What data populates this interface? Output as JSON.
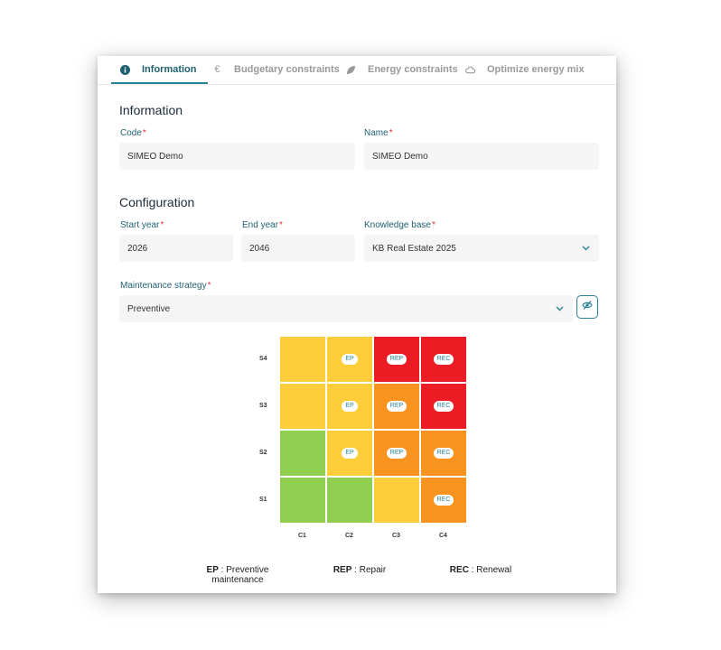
{
  "tabs": [
    {
      "label": "Information",
      "icon": "info-icon",
      "active": true
    },
    {
      "label": "Budgetary constraints",
      "icon": "euro-icon",
      "active": false
    },
    {
      "label": "Energy constraints",
      "icon": "leaf-icon",
      "active": false
    },
    {
      "label": "Optimize energy mix",
      "icon": "cloud-icon",
      "active": false
    }
  ],
  "information": {
    "title": "Information",
    "code_label": "Code",
    "code_value": "SIMEO Demo",
    "name_label": "Name",
    "name_value": "SIMEO Demo"
  },
  "configuration": {
    "title": "Configuration",
    "start_year_label": "Start year",
    "start_year_value": "2026",
    "end_year_label": "End year",
    "end_year_value": "2046",
    "knowledge_base_label": "Knowledge base",
    "knowledge_base_value": "KB Real Estate 2025",
    "maintenance_label": "Maintenance strategy",
    "maintenance_value": "Preventive",
    "required_mark": "*"
  },
  "matrix": {
    "rows": [
      "S4",
      "S3",
      "S2",
      "S1"
    ],
    "cols": [
      "C1",
      "C2",
      "C3",
      "C4"
    ],
    "colors": {
      "green": "#8fce4e",
      "yellow": "#fdcd3a",
      "orange": "#f7931e",
      "red": "#ec1c24"
    },
    "cells": [
      [
        {
          "color": "yellow",
          "tag": ""
        },
        {
          "color": "yellow",
          "tag": "EP"
        },
        {
          "color": "red",
          "tag": "REP"
        },
        {
          "color": "red",
          "tag": "REC"
        }
      ],
      [
        {
          "color": "yellow",
          "tag": ""
        },
        {
          "color": "yellow",
          "tag": "EP"
        },
        {
          "color": "orange",
          "tag": "REP"
        },
        {
          "color": "red",
          "tag": "REC"
        }
      ],
      [
        {
          "color": "green",
          "tag": ""
        },
        {
          "color": "yellow",
          "tag": "EP"
        },
        {
          "color": "orange",
          "tag": "REP"
        },
        {
          "color": "orange",
          "tag": "REC"
        }
      ],
      [
        {
          "color": "green",
          "tag": ""
        },
        {
          "color": "green",
          "tag": ""
        },
        {
          "color": "yellow",
          "tag": ""
        },
        {
          "color": "orange",
          "tag": "REC"
        }
      ]
    ]
  },
  "legend": [
    {
      "abbr": "EP",
      "sep": " : ",
      "text": "Preventive",
      "text2": "maintenance"
    },
    {
      "abbr": "REP",
      "sep": " : ",
      "text": "Repair",
      "text2": ""
    },
    {
      "abbr": "REC",
      "sep": " : ",
      "text": "Renewal",
      "text2": ""
    }
  ]
}
